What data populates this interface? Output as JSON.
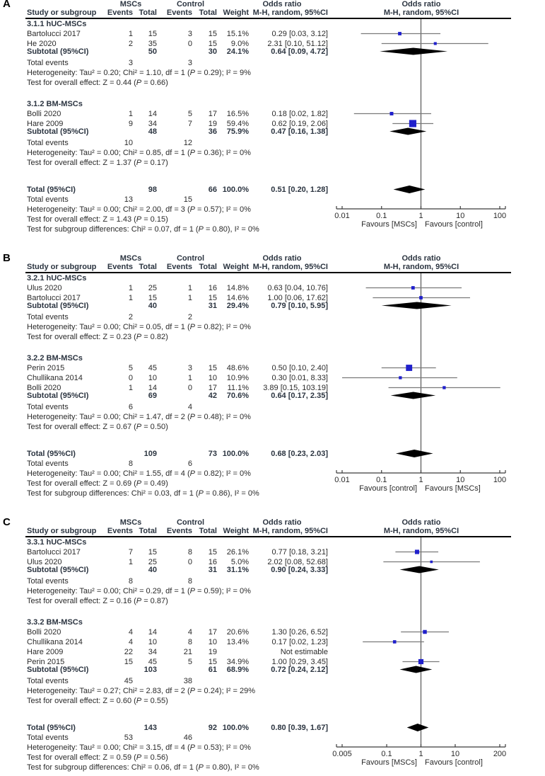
{
  "chart_data": {
    "type": "forest",
    "effect_measure": "Odds ratio, M-H, random, 95% CI",
    "x_scale": "log",
    "colors": {
      "square": "#2020cc",
      "diamond": "#000000",
      "ci_line": "#7a7a7a",
      "axis": "#3c3c3c",
      "rule": "#000000"
    },
    "columns": {
      "study": "Study or subgroup",
      "group_msc": "MSCs",
      "group_control": "Control",
      "events": "Events",
      "total": "Total",
      "weight": "Weight",
      "or_title": "Odds ratio",
      "or_subtitle": "M-H, random, 95%CI"
    },
    "labels": {
      "total_events": "Total events"
    },
    "panels": [
      {
        "label": "A",
        "axis": {
          "min": 0.01,
          "max": 100,
          "tick_values": [
            0.01,
            0.1,
            1,
            10,
            100
          ],
          "ticks": [
            "0.01",
            "0.1",
            "1",
            "10",
            "100"
          ],
          "favours_left": "Favours [MSCs]",
          "favours_right": "Favours [control]"
        },
        "sections": [
          {
            "title": "3.1.1 hUC-MSCs",
            "studies": [
              {
                "name": "Bartolucci 2017",
                "events_msc": "1",
                "total_msc": "15",
                "events_ctrl": "3",
                "total_ctrl": "15",
                "weight": "15.1%",
                "weight_value": 15.1,
                "or_ci": "0.29 [0.03, 3.12]",
                "or": 0.29,
                "ci_lo": 0.03,
                "ci_hi": 3.12
              },
              {
                "name": "He 2020",
                "events_msc": "2",
                "total_msc": "35",
                "events_ctrl": "0",
                "total_ctrl": "15",
                "weight": "9.0%",
                "weight_value": 9.0,
                "or_ci": "2.31 [0.10, 51.12]",
                "or": 2.31,
                "ci_lo": 0.1,
                "ci_hi": 51.12
              }
            ],
            "subtotal": {
              "label": "Subtotal (95%CI)",
              "total_msc": "50",
              "total_ctrl": "30",
              "weight": "24.1%",
              "or_ci": "0.64 [0.09, 4.72]",
              "or": 0.64,
              "ci_lo": 0.09,
              "ci_hi": 4.72
            },
            "total_events": [
              "3",
              "3"
            ],
            "heterogeneity": "Heterogeneity: Tau² = 0.20; Chi² = 1.10, df = 1 (P = 0.29); I² = 9%",
            "overall_test": "Test for overall effect: Z = 0.44 (P = 0.66)"
          },
          {
            "title": "3.1.2 BM-MSCs",
            "studies": [
              {
                "name": "Bolli 2020",
                "events_msc": "1",
                "total_msc": "14",
                "events_ctrl": "5",
                "total_ctrl": "17",
                "weight": "16.5%",
                "weight_value": 16.5,
                "or_ci": "0.18 [0.02, 1.82]",
                "or": 0.18,
                "ci_lo": 0.02,
                "ci_hi": 1.82
              },
              {
                "name": "Hare 2009",
                "events_msc": "9",
                "total_msc": "34",
                "events_ctrl": "7",
                "total_ctrl": "19",
                "weight": "59.4%",
                "weight_value": 59.4,
                "or_ci": "0.62 [0.19, 2.06]",
                "or": 0.62,
                "ci_lo": 0.19,
                "ci_hi": 2.06
              }
            ],
            "subtotal": {
              "label": "Subtotal (95%CI)",
              "total_msc": "48",
              "total_ctrl": "36",
              "weight": "75.9%",
              "or_ci": "0.47 [0.16, 1.38]",
              "or": 0.47,
              "ci_lo": 0.16,
              "ci_hi": 1.38
            },
            "total_events": [
              "10",
              "12"
            ],
            "heterogeneity": "Heterogeneity: Tau² = 0.00; Chi² = 0.85, df = 1 (P = 0.36); I² = 0%",
            "overall_test": "Test for overall effect: Z = 1.37 (P = 0.17)"
          }
        ],
        "total": {
          "label": "Total (95%CI)",
          "total_msc": "98",
          "total_ctrl": "66",
          "weight": "100.0%",
          "or_ci": "0.51 [0.20, 1.28]",
          "or": 0.51,
          "ci_lo": 0.2,
          "ci_hi": 1.28
        },
        "total_events": [
          "13",
          "15"
        ],
        "heterogeneity": "Heterogeneity: Tau² = 0.00; Chi² = 2.00, df = 3 (P = 0.57); I² = 0%",
        "overall_test": "Test for overall effect: Z = 1.43 (P = 0.15)",
        "subgroup_test": "Test for subgroup differences: Chi² = 0.07, df = 1 (P = 0.80), I² = 0%"
      },
      {
        "label": "B",
        "axis": {
          "min": 0.01,
          "max": 100,
          "tick_values": [
            0.01,
            0.1,
            1,
            10,
            100
          ],
          "ticks": [
            "0.01",
            "0.1",
            "1",
            "10",
            "100"
          ],
          "favours_left": "Favours [control]",
          "favours_right": "Favours [MSCs]"
        },
        "sections": [
          {
            "title": "3.2.1 hUC-MSCs",
            "studies": [
              {
                "name": "Ulus 2020",
                "events_msc": "1",
                "total_msc": "25",
                "events_ctrl": "1",
                "total_ctrl": "16",
                "weight": "14.8%",
                "weight_value": 14.8,
                "or_ci": "0.63 [0.04, 10.76]",
                "or": 0.63,
                "ci_lo": 0.04,
                "ci_hi": 10.76
              },
              {
                "name": "Bartolucci 2017",
                "events_msc": "1",
                "total_msc": "15",
                "events_ctrl": "1",
                "total_ctrl": "15",
                "weight": "14.6%",
                "weight_value": 14.6,
                "or_ci": "1.00 [0.06, 17.62]",
                "or": 1.0,
                "ci_lo": 0.06,
                "ci_hi": 17.62
              }
            ],
            "subtotal": {
              "label": "Subtotal (95%CI)",
              "total_msc": "40",
              "total_ctrl": "31",
              "weight": "29.4%",
              "or_ci": "0.79 [0.10, 5.95]",
              "or": 0.79,
              "ci_lo": 0.1,
              "ci_hi": 5.95
            },
            "total_events": [
              "2",
              "2"
            ],
            "heterogeneity": "Heterogeneity: Tau² = 0.00; Chi² = 0.05, df = 1 (P = 0.82); I² = 0%",
            "overall_test": "Test for overall effect: Z = 0.23 (P = 0.82)"
          },
          {
            "title": "3.2.2 BM-MSCs",
            "studies": [
              {
                "name": "Perin 2015",
                "events_msc": "5",
                "total_msc": "45",
                "events_ctrl": "3",
                "total_ctrl": "15",
                "weight": "48.6%",
                "weight_value": 48.6,
                "or_ci": "0.50 [0.10, 2.40]",
                "or": 0.5,
                "ci_lo": 0.1,
                "ci_hi": 2.4
              },
              {
                "name": "Chullikana 2014",
                "events_msc": "0",
                "total_msc": "10",
                "events_ctrl": "1",
                "total_ctrl": "10",
                "weight": "10.9%",
                "weight_value": 10.9,
                "or_ci": "0.30 [0.01, 8.33]",
                "or": 0.3,
                "ci_lo": 0.01,
                "ci_hi": 8.33
              },
              {
                "name": "Bolli 2020",
                "events_msc": "1",
                "total_msc": "14",
                "events_ctrl": "0",
                "total_ctrl": "17",
                "weight": "11.1%",
                "weight_value": 11.1,
                "or_ci": "3.89 [0.15, 103.19]",
                "or": 3.89,
                "ci_lo": 0.15,
                "ci_hi": 103.19
              }
            ],
            "subtotal": {
              "label": "Subtotal (95%CI)",
              "total_msc": "69",
              "total_ctrl": "42",
              "weight": "70.6%",
              "or_ci": "0.64 [0.17, 2.35]",
              "or": 0.64,
              "ci_lo": 0.17,
              "ci_hi": 2.35
            },
            "total_events": [
              "6",
              "4"
            ],
            "heterogeneity": "Heterogeneity: Tau² = 0.00; Chi² = 1.47, df = 2 (P = 0.48); I² = 0%",
            "overall_test": "Test for overall effect: Z = 0.67 (P = 0.50)"
          }
        ],
        "total": {
          "label": "Total (95%CI)",
          "total_msc": "109",
          "total_ctrl": "73",
          "weight": "100.0%",
          "or_ci": "0.68 [0.23, 2.03]",
          "or": 0.68,
          "ci_lo": 0.23,
          "ci_hi": 2.03
        },
        "total_events": [
          "8",
          "6"
        ],
        "heterogeneity": "Heterogeneity: Tau² = 0.00; Chi² = 1.55, df = 4 (P = 0.82); I² = 0%",
        "overall_test": "Test for overall effect: Z = 0.69 (P = 0.49)",
        "subgroup_test": "Test for subgroup differences: Chi² = 0.03, df = 1 (P = 0.86), I² = 0%"
      },
      {
        "label": "C",
        "axis": {
          "min": 0.005,
          "max": 200,
          "tick_values": [
            0.005,
            0.1,
            1,
            10,
            200
          ],
          "ticks": [
            "0.005",
            "0.1",
            "1",
            "10",
            "200"
          ],
          "favours_left": "Favours [MSCs]",
          "favours_right": "Favours [control]"
        },
        "sections": [
          {
            "title": "3.3.1 hUC-MSCs",
            "studies": [
              {
                "name": "Bartolucci 2017",
                "events_msc": "7",
                "total_msc": "15",
                "events_ctrl": "8",
                "total_ctrl": "15",
                "weight": "26.1%",
                "weight_value": 26.1,
                "or_ci": "0.77 [0.18, 3.21]",
                "or": 0.77,
                "ci_lo": 0.18,
                "ci_hi": 3.21
              },
              {
                "name": "Ulus 2020",
                "events_msc": "1",
                "total_msc": "25",
                "events_ctrl": "0",
                "total_ctrl": "16",
                "weight": "5.0%",
                "weight_value": 5.0,
                "or_ci": "2.02 [0.08, 52.68]",
                "or": 2.02,
                "ci_lo": 0.08,
                "ci_hi": 52.68
              }
            ],
            "subtotal": {
              "label": "Subtotal (95%CI)",
              "total_msc": "40",
              "total_ctrl": "31",
              "weight": "31.1%",
              "or_ci": "0.90 [0.24, 3.33]",
              "or": 0.9,
              "ci_lo": 0.24,
              "ci_hi": 3.33
            },
            "total_events": [
              "8",
              "8"
            ],
            "heterogeneity": "Heterogeneity: Tau² = 0.00; Chi² = 0.29, df = 1 (P = 0.59); I² = 0%",
            "overall_test": "Test for overall effect: Z = 0.16 (P = 0.87)"
          },
          {
            "title": "3.3.2 BM-MSCs",
            "studies": [
              {
                "name": "Bolli 2020",
                "events_msc": "4",
                "total_msc": "14",
                "events_ctrl": "4",
                "total_ctrl": "17",
                "weight": "20.6%",
                "weight_value": 20.6,
                "or_ci": "1.30 [0.26, 6.52]",
                "or": 1.3,
                "ci_lo": 0.26,
                "ci_hi": 6.52
              },
              {
                "name": "Chullikana 2014",
                "events_msc": "4",
                "total_msc": "10",
                "events_ctrl": "8",
                "total_ctrl": "10",
                "weight": "13.4%",
                "weight_value": 13.4,
                "or_ci": "0.17 [0.02, 1.23]",
                "or": 0.17,
                "ci_lo": 0.02,
                "ci_hi": 1.23
              },
              {
                "name": "Hare 2009",
                "events_msc": "22",
                "total_msc": "34",
                "events_ctrl": "21",
                "total_ctrl": "19",
                "weight": "",
                "weight_value": null,
                "or_ci": "Not estimable",
                "or": null,
                "ci_lo": null,
                "ci_hi": null
              },
              {
                "name": "Perin 2015",
                "events_msc": "15",
                "total_msc": "45",
                "events_ctrl": "5",
                "total_ctrl": "15",
                "weight": "34.9%",
                "weight_value": 34.9,
                "or_ci": "1.00 [0.29, 3.45]",
                "or": 1.0,
                "ci_lo": 0.29,
                "ci_hi": 3.45
              }
            ],
            "subtotal": {
              "label": "Subtotal (95%CI)",
              "total_msc": "103",
              "total_ctrl": "61",
              "weight": "68.9%",
              "or_ci": "0.72 [0.24, 2.12]",
              "or": 0.72,
              "ci_lo": 0.24,
              "ci_hi": 2.12
            },
            "total_events": [
              "45",
              "38"
            ],
            "heterogeneity": "Heterogeneity: Tau² = 0.27; Chi² = 2.83, df = 2 (P = 0.24); I² = 29%",
            "overall_test": "Test for overall effect: Z = 0.60 (P = 0.55)"
          }
        ],
        "total": {
          "label": "Total (95%CI)",
          "total_msc": "143",
          "total_ctrl": "92",
          "weight": "100.0%",
          "or_ci": "0.80 [0.39, 1.67]",
          "or": 0.8,
          "ci_lo": 0.39,
          "ci_hi": 1.67
        },
        "total_events": [
          "53",
          "46"
        ],
        "heterogeneity": "Heterogeneity: Tau² = 0.00; Chi² = 3.15, df = 4 (P = 0.53); I² = 0%",
        "overall_test": "Test for overall effect: Z = 0.59 (P = 0.56)",
        "subgroup_test": "Test for subgroup differences: Chi² = 0.06, df = 1 (P = 0.80), I² = 0%"
      }
    ]
  }
}
